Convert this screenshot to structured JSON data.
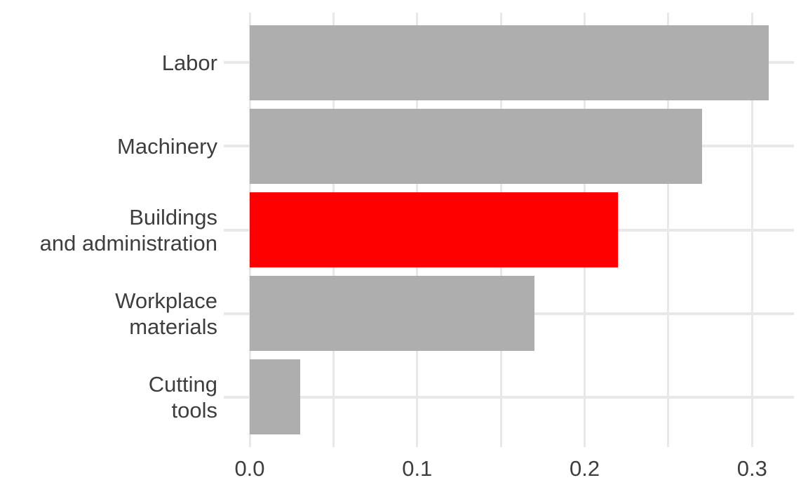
{
  "chart_data": {
    "type": "bar",
    "orientation": "horizontal",
    "title": "",
    "xlabel": "",
    "ylabel": "",
    "legend": "none",
    "grid": "vertical value gridlines every 0.05, horizontal line per category",
    "categories": [
      "Labor",
      "Machinery",
      "Buildings and administration",
      "Workplace materials",
      "Cutting tools"
    ],
    "category_label_lines": [
      [
        "Labor"
      ],
      [
        "Machinery"
      ],
      [
        "Buildings",
        "and administration"
      ],
      [
        "Workplace",
        "materials"
      ],
      [
        "Cutting",
        "tools"
      ]
    ],
    "values": [
      0.31,
      0.27,
      0.22,
      0.17,
      0.03
    ],
    "bar_colors": [
      "#aeaeae",
      "#aeaeae",
      "#ff0000",
      "#aeaeae",
      "#aeaeae"
    ],
    "highlighted_category": "Buildings and administration",
    "bar_width_fraction": 0.9,
    "xlim": [
      0,
      0.325
    ],
    "x_major_ticks": [
      0,
      0.1,
      0.2,
      0.3
    ],
    "x_tick_labels": [
      "0.0",
      "0.1",
      "0.2",
      "0.3"
    ],
    "x_minor_ticks": [
      0.05,
      0.15,
      0.25
    ]
  },
  "colors": {
    "bar_default": "#aeaeae",
    "bar_highlight": "#ff0000",
    "gridline": "#e8e8e8",
    "axis_text": "#3e3e3e",
    "background": "#ffffff"
  }
}
